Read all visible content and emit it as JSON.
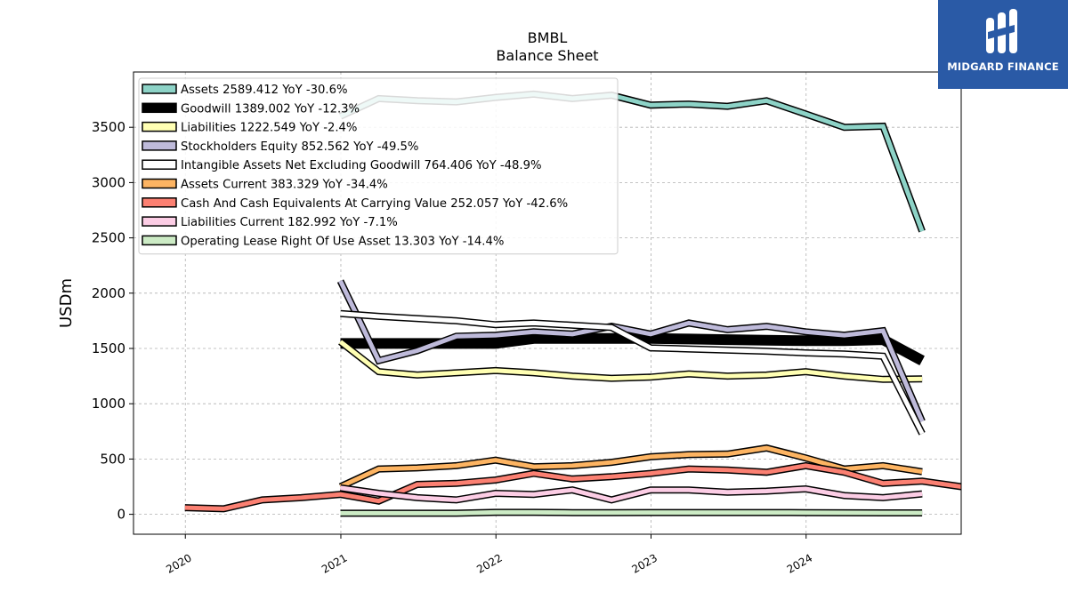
{
  "chart_data": {
    "type": "line",
    "title": "BMBL",
    "subtitle": "Balance  Sheet",
    "ylabel": "USDm",
    "xlabel": "",
    "xlim": [
      "2019-09-01",
      "2024-12-31"
    ],
    "ylim": [
      -180,
      4000
    ],
    "yticks": [
      0,
      500,
      1000,
      1500,
      2000,
      2500,
      3000,
      3500
    ],
    "xticks": [
      "2020",
      "2021",
      "2022",
      "2023",
      "2024"
    ],
    "grid": true,
    "legend_position": "top-left",
    "series": [
      {
        "name": "Assets  2589.412 YoY -30.6%",
        "color": "#8dd3c7",
        "width": 5,
        "points": [
          [
            "2020-12-31",
            3600
          ],
          [
            "2021-03-31",
            3760
          ],
          [
            "2021-06-30",
            3740
          ],
          [
            "2021-09-30",
            3730
          ],
          [
            "2021-12-31",
            3770
          ],
          [
            "2022-03-31",
            3800
          ],
          [
            "2022-06-30",
            3760
          ],
          [
            "2022-09-30",
            3790
          ],
          [
            "2022-12-31",
            3700
          ],
          [
            "2023-03-31",
            3710
          ],
          [
            "2023-06-30",
            3690
          ],
          [
            "2023-09-30",
            3740
          ],
          [
            "2023-12-31",
            3620
          ],
          [
            "2024-03-31",
            3500
          ],
          [
            "2024-06-30",
            3510
          ],
          [
            "2024-09-30",
            2560
          ]
        ]
      },
      {
        "name": "Goodwill  1389.002 YoY -12.3%",
        "color": "#000000",
        "width": 9,
        "points": [
          [
            "2020-12-31",
            1545
          ],
          [
            "2021-03-31",
            1545
          ],
          [
            "2021-06-30",
            1545
          ],
          [
            "2021-09-30",
            1545
          ],
          [
            "2021-12-31",
            1545
          ],
          [
            "2022-03-31",
            1590
          ],
          [
            "2022-06-30",
            1590
          ],
          [
            "2022-09-30",
            1590
          ],
          [
            "2022-12-31",
            1590
          ],
          [
            "2023-03-31",
            1585
          ],
          [
            "2023-06-30",
            1580
          ],
          [
            "2023-09-30",
            1575
          ],
          [
            "2023-12-31",
            1570
          ],
          [
            "2024-03-31",
            1570
          ],
          [
            "2024-06-30",
            1580
          ],
          [
            "2024-09-30",
            1390
          ]
        ]
      },
      {
        "name": "Liabilities  1222.549 YoY -2.4%",
        "color": "#ffffb3",
        "width": 5,
        "points": [
          [
            "2020-12-31",
            1560
          ],
          [
            "2021-03-31",
            1290
          ],
          [
            "2021-06-30",
            1260
          ],
          [
            "2021-09-30",
            1280
          ],
          [
            "2021-12-31",
            1300
          ],
          [
            "2022-03-31",
            1280
          ],
          [
            "2022-06-30",
            1250
          ],
          [
            "2022-09-30",
            1230
          ],
          [
            "2022-12-31",
            1240
          ],
          [
            "2023-03-31",
            1270
          ],
          [
            "2023-06-30",
            1250
          ],
          [
            "2023-09-30",
            1260
          ],
          [
            "2023-12-31",
            1290
          ],
          [
            "2024-03-31",
            1250
          ],
          [
            "2024-06-30",
            1220
          ],
          [
            "2024-09-30",
            1225
          ]
        ]
      },
      {
        "name": "Stockholders Equity  852.562 YoY -49.5%",
        "color": "#bebada",
        "width": 5,
        "points": [
          [
            "2020-12-31",
            2110
          ],
          [
            "2021-03-31",
            1390
          ],
          [
            "2021-06-30",
            1480
          ],
          [
            "2021-09-30",
            1610
          ],
          [
            "2021-12-31",
            1620
          ],
          [
            "2022-03-31",
            1650
          ],
          [
            "2022-06-30",
            1630
          ],
          [
            "2022-09-30",
            1700
          ],
          [
            "2022-12-31",
            1630
          ],
          [
            "2023-03-31",
            1730
          ],
          [
            "2023-06-30",
            1670
          ],
          [
            "2023-09-30",
            1700
          ],
          [
            "2023-12-31",
            1650
          ],
          [
            "2024-03-31",
            1620
          ],
          [
            "2024-06-30",
            1660
          ],
          [
            "2024-09-30",
            840
          ]
        ]
      },
      {
        "name": "Intangible Assets Net Excluding Goodwill  764.406 YoY -48.9%",
        "color": "#ffffff",
        "width": 5,
        "points": [
          [
            "2020-12-31",
            1815
          ],
          [
            "2021-03-31",
            1790
          ],
          [
            "2021-06-30",
            1770
          ],
          [
            "2021-09-30",
            1750
          ],
          [
            "2021-12-31",
            1715
          ],
          [
            "2022-03-31",
            1730
          ],
          [
            "2022-06-30",
            1710
          ],
          [
            "2022-09-30",
            1690
          ],
          [
            "2022-12-31",
            1505
          ],
          [
            "2023-03-31",
            1495
          ],
          [
            "2023-06-30",
            1485
          ],
          [
            "2023-09-30",
            1475
          ],
          [
            "2023-12-31",
            1460
          ],
          [
            "2024-03-31",
            1450
          ],
          [
            "2024-06-30",
            1430
          ],
          [
            "2024-09-30",
            730
          ]
        ]
      },
      {
        "name": "Assets Current  383.329 YoY -34.4%",
        "color": "#fdb462",
        "width": 5,
        "points": [
          [
            "2020-12-31",
            250
          ],
          [
            "2021-03-31",
            410
          ],
          [
            "2021-06-30",
            420
          ],
          [
            "2021-09-30",
            440
          ],
          [
            "2021-12-31",
            490
          ],
          [
            "2022-03-31",
            430
          ],
          [
            "2022-06-30",
            440
          ],
          [
            "2022-09-30",
            470
          ],
          [
            "2022-12-31",
            520
          ],
          [
            "2023-03-31",
            540
          ],
          [
            "2023-06-30",
            545
          ],
          [
            "2023-09-30",
            600
          ],
          [
            "2023-12-31",
            510
          ],
          [
            "2024-03-31",
            410
          ],
          [
            "2024-06-30",
            440
          ],
          [
            "2024-09-30",
            385
          ]
        ]
      },
      {
        "name": "Cash And Cash Equivalents At Carrying Value  252.057 YoY -42.6%",
        "color": "#fb8072",
        "width": 5,
        "points": [
          [
            "2019-12-31",
            60
          ],
          [
            "2020-03-31",
            50
          ],
          [
            "2020-06-30",
            130
          ],
          [
            "2020-09-30",
            150
          ],
          [
            "2020-12-31",
            180
          ],
          [
            "2021-03-31",
            120
          ],
          [
            "2021-06-30",
            270
          ],
          [
            "2021-09-30",
            280
          ],
          [
            "2021-12-31",
            310
          ],
          [
            "2022-03-31",
            370
          ],
          [
            "2022-06-30",
            320
          ],
          [
            "2022-09-30",
            340
          ],
          [
            "2022-12-31",
            370
          ],
          [
            "2023-03-31",
            410
          ],
          [
            "2023-06-30",
            400
          ],
          [
            "2023-09-30",
            380
          ],
          [
            "2023-12-31",
            440
          ],
          [
            "2024-03-31",
            380
          ],
          [
            "2024-06-30",
            280
          ],
          [
            "2024-09-30",
            300
          ],
          [
            "2024-12-31",
            250
          ]
        ]
      },
      {
        "name": "Liabilities Current  182.992 YoY -7.1%",
        "color": "#fccde5",
        "width": 5,
        "points": [
          [
            "2020-12-31",
            240
          ],
          [
            "2021-03-31",
            190
          ],
          [
            "2021-06-30",
            150
          ],
          [
            "2021-09-30",
            130
          ],
          [
            "2021-12-31",
            190
          ],
          [
            "2022-03-31",
            180
          ],
          [
            "2022-06-30",
            220
          ],
          [
            "2022-09-30",
            130
          ],
          [
            "2022-12-31",
            220
          ],
          [
            "2023-03-31",
            220
          ],
          [
            "2023-06-30",
            200
          ],
          [
            "2023-09-30",
            210
          ],
          [
            "2023-12-31",
            230
          ],
          [
            "2024-03-31",
            170
          ],
          [
            "2024-06-30",
            150
          ],
          [
            "2024-09-30",
            185
          ]
        ]
      },
      {
        "name": "Operating Lease Right Of Use Asset  13.303 YoY -14.4%",
        "color": "#ccebc5",
        "width": 5,
        "points": [
          [
            "2020-12-31",
            10
          ],
          [
            "2021-03-31",
            10
          ],
          [
            "2021-06-30",
            10
          ],
          [
            "2021-09-30",
            10
          ],
          [
            "2021-12-31",
            18
          ],
          [
            "2022-03-31",
            18
          ],
          [
            "2022-06-30",
            15
          ],
          [
            "2022-09-30",
            15
          ],
          [
            "2022-12-31",
            16
          ],
          [
            "2023-03-31",
            16
          ],
          [
            "2023-06-30",
            16
          ],
          [
            "2023-09-30",
            16
          ],
          [
            "2023-12-31",
            15
          ],
          [
            "2024-03-31",
            14
          ],
          [
            "2024-06-30",
            13
          ],
          [
            "2024-09-30",
            13
          ]
        ]
      }
    ]
  },
  "brand": {
    "name": "MIDGARD FINANCE",
    "color": "#2a5aa6"
  }
}
